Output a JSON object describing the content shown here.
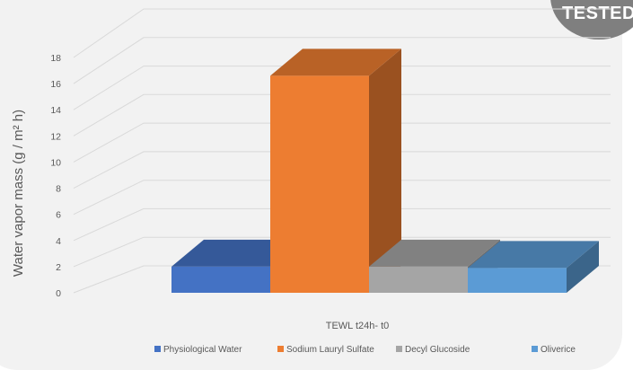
{
  "badge": {
    "text": "TESTED"
  },
  "chart_data": {
    "type": "bar",
    "style": "3d-clustered-column",
    "xlabel": "TEWL t24h- t0",
    "ylabel": "Water vapor mass (g / m² h)",
    "ylim": [
      0,
      18
    ],
    "yticks": [
      0,
      2,
      4,
      6,
      8,
      10,
      12,
      14,
      16,
      18
    ],
    "grid": true,
    "legend_position": "bottom",
    "categories": [
      "TEWL t24h- t0"
    ],
    "series": [
      {
        "name": "Physiological Water",
        "values": [
          2.0
        ],
        "color": "#4472c4"
      },
      {
        "name": "Sodium Lauryl Sulfate",
        "values": [
          16.6
        ],
        "color": "#ed7d31"
      },
      {
        "name": "Decyl Glucoside",
        "values": [
          2.0
        ],
        "color": "#a5a5a5"
      },
      {
        "name": "Oliverice",
        "values": [
          1.9
        ],
        "color": "#5b9bd5"
      }
    ]
  }
}
